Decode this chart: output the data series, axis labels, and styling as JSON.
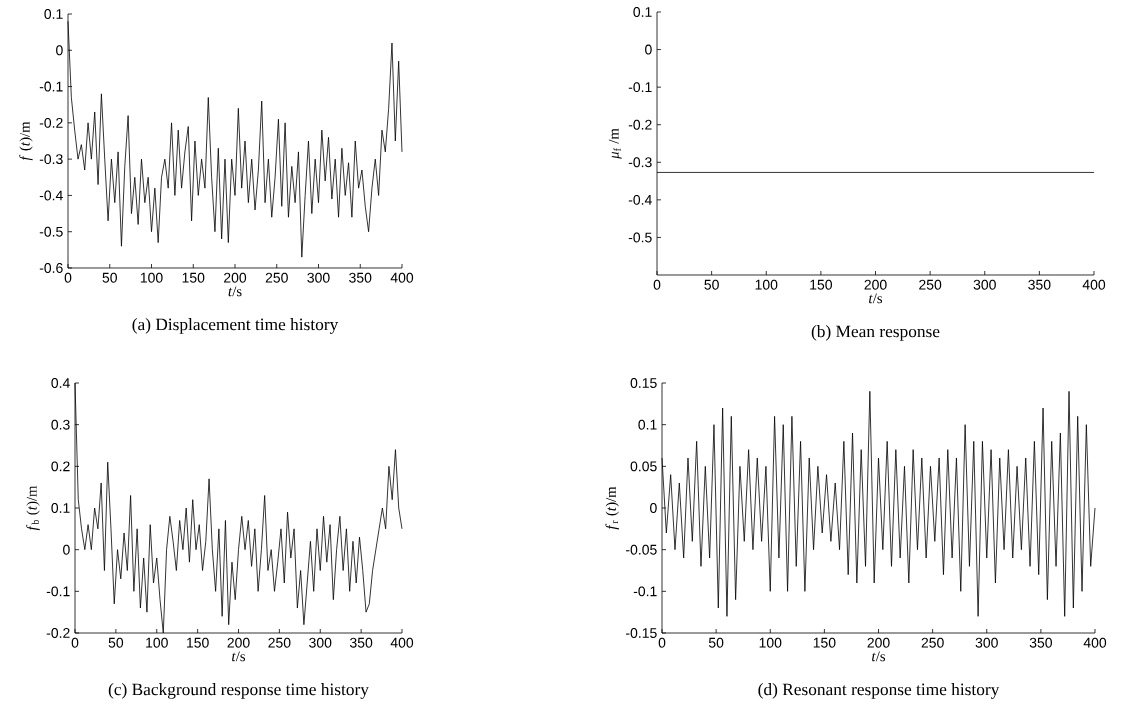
{
  "chart_data": [
    {
      "type": "line",
      "title": "(a) Displacement time history",
      "xlabel": "*t*/s",
      "ylabel": "*f* (*t*)/m",
      "color": "#000000",
      "xlim": [
        0,
        400
      ],
      "ylim": [
        -0.6,
        0.1
      ],
      "xticks": [
        0,
        50,
        100,
        150,
        200,
        250,
        300,
        350,
        400
      ],
      "yticks": [
        -0.6,
        -0.5,
        -0.4,
        -0.3,
        -0.2,
        -0.1,
        0,
        0.1
      ],
      "x": [
        0,
        4,
        8,
        12,
        16,
        20,
        24,
        28,
        32,
        36,
        40,
        44,
        48,
        52,
        56,
        60,
        64,
        68,
        72,
        76,
        80,
        84,
        88,
        92,
        96,
        100,
        104,
        108,
        112,
        116,
        120,
        124,
        128,
        132,
        136,
        140,
        144,
        148,
        152,
        156,
        160,
        164,
        168,
        172,
        176,
        180,
        184,
        188,
        192,
        196,
        200,
        204,
        208,
        212,
        216,
        220,
        224,
        228,
        232,
        236,
        240,
        244,
        248,
        252,
        256,
        260,
        264,
        268,
        272,
        276,
        280,
        284,
        288,
        292,
        296,
        300,
        304,
        308,
        312,
        316,
        320,
        324,
        328,
        332,
        336,
        340,
        344,
        348,
        352,
        356,
        360,
        364,
        368,
        372,
        376,
        380,
        384,
        388,
        392,
        396,
        400
      ],
      "values": [
        0.08,
        -0.13,
        -0.22,
        -0.3,
        -0.26,
        -0.33,
        -0.2,
        -0.3,
        -0.17,
        -0.37,
        -0.12,
        -0.3,
        -0.47,
        -0.3,
        -0.42,
        -0.28,
        -0.54,
        -0.32,
        -0.18,
        -0.45,
        -0.35,
        -0.48,
        -0.3,
        -0.42,
        -0.35,
        -0.5,
        -0.38,
        -0.53,
        -0.35,
        -0.3,
        -0.38,
        -0.2,
        -0.4,
        -0.22,
        -0.38,
        -0.28,
        -0.21,
        -0.47,
        -0.25,
        -0.4,
        -0.3,
        -0.38,
        -0.13,
        -0.35,
        -0.5,
        -0.27,
        -0.52,
        -0.3,
        -0.53,
        -0.3,
        -0.4,
        -0.16,
        -0.38,
        -0.25,
        -0.42,
        -0.3,
        -0.44,
        -0.33,
        -0.14,
        -0.42,
        -0.3,
        -0.46,
        -0.35,
        -0.19,
        -0.43,
        -0.2,
        -0.46,
        -0.32,
        -0.42,
        -0.28,
        -0.57,
        -0.4,
        -0.25,
        -0.45,
        -0.3,
        -0.42,
        -0.22,
        -0.36,
        -0.24,
        -0.41,
        -0.3,
        -0.46,
        -0.27,
        -0.4,
        -0.31,
        -0.46,
        -0.25,
        -0.38,
        -0.33,
        -0.43,
        -0.5,
        -0.38,
        -0.3,
        -0.4,
        -0.22,
        -0.28,
        -0.16,
        0.02,
        -0.25,
        -0.03,
        -0.28
      ]
    },
    {
      "type": "line",
      "title": "(b) Mean response",
      "xlabel": "*t*/s",
      "ylabel": "*μ*$_{f}$ /m",
      "color": "#000000",
      "xlim": [
        0,
        400
      ],
      "ylim": [
        -0.6,
        0.1
      ],
      "xticks": [
        0,
        50,
        100,
        150,
        200,
        250,
        300,
        350,
        400
      ],
      "yticks": [
        -0.5,
        -0.4,
        -0.3,
        -0.2,
        -0.1,
        0,
        0.1
      ],
      "x": [
        0,
        400
      ],
      "values": [
        -0.327,
        -0.327
      ]
    },
    {
      "type": "line",
      "title": "(c) Background response time history",
      "xlabel": "*t*/s",
      "ylabel": "*f*$_{b}$ (*t*)/m",
      "color": "#000000",
      "xlim": [
        0,
        400
      ],
      "ylim": [
        -0.2,
        0.4
      ],
      "xticks": [
        0,
        50,
        100,
        150,
        200,
        250,
        300,
        350,
        400
      ],
      "yticks": [
        -0.2,
        -0.1,
        0,
        0.1,
        0.2,
        0.3,
        0.4
      ],
      "x": [
        0,
        4,
        8,
        12,
        16,
        20,
        24,
        28,
        32,
        36,
        40,
        44,
        48,
        52,
        56,
        60,
        64,
        68,
        72,
        76,
        80,
        84,
        88,
        92,
        96,
        100,
        104,
        108,
        112,
        116,
        120,
        124,
        128,
        132,
        136,
        140,
        144,
        148,
        152,
        156,
        160,
        164,
        168,
        172,
        176,
        180,
        184,
        188,
        192,
        196,
        200,
        204,
        208,
        212,
        216,
        220,
        224,
        228,
        232,
        236,
        240,
        244,
        248,
        252,
        256,
        260,
        264,
        268,
        272,
        276,
        280,
        284,
        288,
        292,
        296,
        300,
        304,
        308,
        312,
        316,
        320,
        324,
        328,
        332,
        336,
        340,
        344,
        348,
        352,
        356,
        360,
        364,
        368,
        372,
        376,
        380,
        384,
        388,
        392,
        396,
        400
      ],
      "values": [
        0.4,
        0.12,
        0.05,
        0.0,
        0.06,
        0.0,
        0.1,
        0.05,
        0.16,
        -0.05,
        0.21,
        0.05,
        -0.13,
        0.0,
        -0.07,
        0.04,
        -0.05,
        0.13,
        -0.1,
        0.05,
        -0.14,
        -0.02,
        -0.15,
        0.06,
        -0.08,
        -0.02,
        -0.12,
        -0.2,
        0.0,
        0.08,
        0.02,
        -0.05,
        0.07,
        0.0,
        0.1,
        -0.03,
        0.12,
        0.0,
        0.06,
        -0.05,
        0.02,
        0.17,
        0.0,
        -0.1,
        0.05,
        -0.16,
        0.07,
        -0.18,
        -0.03,
        -0.12,
        0.0,
        0.08,
        0.0,
        0.07,
        -0.04,
        0.05,
        -0.1,
        0.0,
        0.13,
        -0.05,
        0.0,
        -0.1,
        -0.03,
        0.05,
        -0.08,
        0.09,
        -0.02,
        0.05,
        -0.14,
        -0.05,
        -0.18,
        -0.08,
        0.02,
        -0.1,
        0.05,
        -0.05,
        0.08,
        -0.03,
        0.06,
        -0.12,
        0.0,
        0.08,
        -0.05,
        0.05,
        -0.1,
        0.02,
        -0.08,
        0.03,
        -0.05,
        -0.15,
        -0.13,
        -0.05,
        0.0,
        0.05,
        0.1,
        0.05,
        0.2,
        0.12,
        0.24,
        0.1,
        0.05
      ]
    },
    {
      "type": "line",
      "title": "(d) Resonant response time history",
      "xlabel": "*t*/s",
      "ylabel": "*f*$_{r}$ (*t*)/m",
      "color": "#000000",
      "xlim": [
        0,
        400
      ],
      "ylim": [
        -0.15,
        0.15
      ],
      "xticks": [
        0,
        50,
        100,
        150,
        200,
        250,
        300,
        350,
        400
      ],
      "yticks": [
        -0.15,
        -0.1,
        -0.05,
        0,
        0.05,
        0.1,
        0.15
      ],
      "x": [
        0,
        4,
        8,
        12,
        16,
        20,
        24,
        28,
        32,
        36,
        40,
        44,
        48,
        52,
        56,
        60,
        64,
        68,
        72,
        76,
        80,
        84,
        88,
        92,
        96,
        100,
        104,
        108,
        112,
        116,
        120,
        124,
        128,
        132,
        136,
        140,
        144,
        148,
        152,
        156,
        160,
        164,
        168,
        172,
        176,
        180,
        184,
        188,
        192,
        196,
        200,
        204,
        208,
        212,
        216,
        220,
        224,
        228,
        232,
        236,
        240,
        244,
        248,
        252,
        256,
        260,
        264,
        268,
        272,
        276,
        280,
        284,
        288,
        292,
        296,
        300,
        304,
        308,
        312,
        316,
        320,
        324,
        328,
        332,
        336,
        340,
        344,
        348,
        352,
        356,
        360,
        364,
        368,
        372,
        376,
        380,
        384,
        388,
        392,
        396,
        400
      ],
      "values": [
        0.06,
        -0.03,
        0.04,
        -0.05,
        0.03,
        -0.06,
        0.06,
        -0.04,
        0.08,
        -0.07,
        0.05,
        -0.06,
        0.1,
        -0.12,
        0.12,
        -0.13,
        0.11,
        -0.11,
        0.05,
        -0.04,
        0.07,
        -0.05,
        0.06,
        -0.04,
        0.05,
        -0.1,
        0.11,
        -0.06,
        0.1,
        -0.1,
        0.11,
        -0.07,
        0.08,
        -0.1,
        0.06,
        -0.05,
        0.05,
        -0.03,
        0.04,
        -0.04,
        0.03,
        -0.05,
        0.08,
        -0.08,
        0.09,
        -0.09,
        0.07,
        -0.07,
        0.14,
        -0.09,
        0.06,
        -0.05,
        0.08,
        -0.07,
        0.07,
        -0.06,
        0.05,
        -0.09,
        0.07,
        -0.05,
        0.06,
        -0.06,
        0.05,
        -0.04,
        0.06,
        -0.08,
        0.07,
        -0.06,
        0.06,
        -0.1,
        0.1,
        -0.07,
        0.08,
        -0.13,
        0.08,
        -0.06,
        0.07,
        -0.09,
        0.06,
        -0.05,
        0.07,
        -0.06,
        0.05,
        -0.05,
        0.06,
        -0.07,
        0.08,
        -0.08,
        0.12,
        -0.11,
        0.08,
        -0.07,
        0.09,
        -0.13,
        0.14,
        -0.12,
        0.11,
        -0.1,
        0.1,
        -0.07,
        0.0
      ]
    }
  ]
}
